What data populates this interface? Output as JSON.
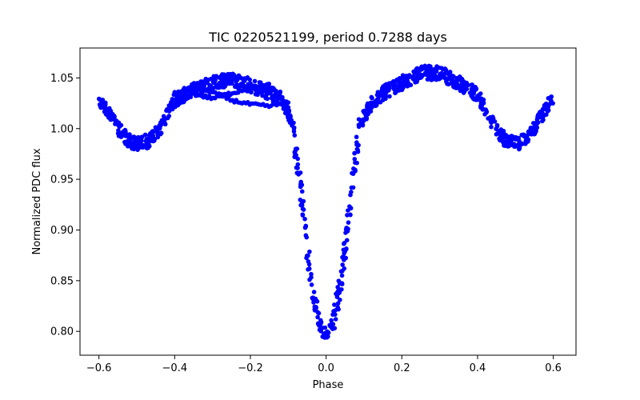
{
  "chart_data": {
    "type": "scatter",
    "title": "TIC 0220521199, period 0.7288 days",
    "xlabel": "Phase",
    "ylabel": "Normalized PDC flux",
    "xlim": [
      -0.65,
      0.66
    ],
    "ylim": [
      0.7765,
      1.0795
    ],
    "xticks": [
      -0.6,
      -0.4,
      -0.2,
      0.0,
      0.2,
      0.4,
      0.6
    ],
    "xtick_labels": [
      "−0.6",
      "−0.4",
      "−0.2",
      "0.0",
      "0.2",
      "0.4",
      "0.6"
    ],
    "yticks": [
      0.8,
      0.85,
      0.9,
      0.95,
      1.0,
      1.05
    ],
    "ytick_labels": [
      "0.80",
      "0.85",
      "0.90",
      "0.95",
      "1.00",
      "1.05"
    ],
    "series": [
      {
        "name": "PDC flux",
        "color": "#0000ff",
        "marker": "circle",
        "phase_range": [
          -0.6,
          0.6
        ],
        "point_count": 1200,
        "curve": {
          "x": [
            -0.6,
            -0.58,
            -0.55,
            -0.52,
            -0.5,
            -0.47,
            -0.44,
            -0.42,
            -0.4,
            -0.35,
            -0.3,
            -0.25,
            -0.2,
            -0.15,
            -0.12,
            -0.09,
            -0.07,
            -0.05,
            -0.03,
            -0.015,
            0.0,
            0.015,
            0.03,
            0.05,
            0.07,
            0.09,
            0.12,
            0.15,
            0.2,
            0.25,
            0.3,
            0.35,
            0.4,
            0.42,
            0.44,
            0.47,
            0.5,
            0.52,
            0.55,
            0.58,
            0.6
          ],
          "y": [
            1.03,
            1.02,
            1.0,
            0.988,
            0.985,
            0.988,
            0.998,
            1.015,
            1.028,
            1.038,
            1.045,
            1.048,
            1.043,
            1.035,
            1.03,
            1.005,
            0.95,
            0.88,
            0.83,
            0.805,
            0.795,
            0.805,
            0.83,
            0.88,
            0.95,
            1.005,
            1.025,
            1.035,
            1.045,
            1.055,
            1.055,
            1.045,
            1.033,
            1.02,
            1.005,
            0.99,
            0.985,
            0.988,
            1.0,
            1.02,
            1.03
          ]
        },
        "scatter_amplitude": 0.007,
        "extra_tracks": [
          {
            "x": [
              -0.4,
              -0.35,
              -0.3,
              -0.25,
              -0.2,
              -0.15,
              -0.1
            ],
            "y": [
              1.035,
              1.042,
              1.036,
              1.028,
              1.024,
              1.022,
              1.026
            ]
          },
          {
            "x": [
              -0.4,
              -0.35,
              -0.3,
              -0.25,
              -0.2,
              -0.15,
              -0.1
            ],
            "y": [
              1.028,
              1.034,
              1.03,
              1.035,
              1.04,
              1.043,
              1.022
            ]
          }
        ]
      }
    ]
  }
}
